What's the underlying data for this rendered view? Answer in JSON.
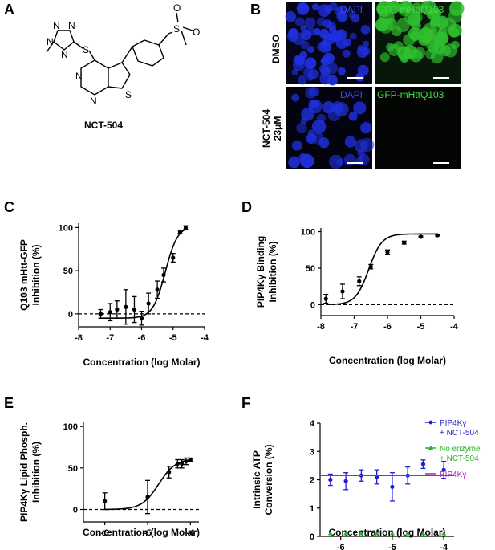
{
  "panel_a": {
    "letter": "A",
    "compound": "NCT-504",
    "atoms": {
      "n1": "N",
      "n2": "N",
      "n3": "N",
      "n4": "N",
      "s_link": "S",
      "n_pyr1": "N",
      "n_pyr2": "N",
      "s_thio": "S",
      "s_sulf": "S",
      "o1": "O",
      "o2": "O"
    }
  },
  "panel_b": {
    "letter": "B",
    "rows": [
      "DMSO",
      "NCT-504\n23μM"
    ],
    "row_line1": [
      "DMSO",
      "NCT-504"
    ],
    "row_line2": [
      "",
      "23μM"
    ],
    "channels": [
      "DAPI",
      "GFP-mHttQ103"
    ],
    "colors": {
      "dapi": "#2030e0",
      "gfp": "#30c030",
      "scale_bar": "#ffffff"
    }
  },
  "chart_data": [
    {
      "panel": "C",
      "type": "scatter",
      "xlabel": "Concentration (log Molar)",
      "ylabel": "Q103 mHtt-GFP Inhibition (%)",
      "ylabel_lines": [
        "Q103 mHtt-GFP",
        "Inhibition (%)"
      ],
      "xlim": [
        -8,
        -4
      ],
      "ylim": [
        -15,
        105
      ],
      "xticks": [
        -8,
        -7,
        -6,
        -5,
        -4
      ],
      "yticks": [
        0,
        50,
        100
      ],
      "zero_line": true,
      "series": [
        {
          "x": [
            -7.3,
            -7.0,
            -6.78,
            -6.5,
            -6.23,
            -6.0,
            -5.78,
            -5.5,
            -5.3,
            -5.0,
            -4.78,
            -4.6
          ],
          "y": [
            0,
            2,
            5,
            8,
            5,
            -5,
            12,
            28,
            45,
            65,
            95,
            100
          ],
          "err": [
            5,
            10,
            10,
            20,
            15,
            8,
            12,
            10,
            8,
            5,
            2,
            2
          ],
          "color": "#000000",
          "fit": true
        }
      ]
    },
    {
      "panel": "D",
      "type": "scatter",
      "xlabel": "Concentration (log Molar)",
      "ylabel": "PIP4Kγ Binding Inhibition (%)",
      "ylabel_lines": [
        "PIP4Kγ Binding",
        "Inhibition (%)"
      ],
      "xlim": [
        -8,
        -4
      ],
      "ylim": [
        -15,
        105
      ],
      "xticks": [
        -8,
        -7,
        -6,
        -5,
        -4
      ],
      "yticks": [
        0,
        50,
        100
      ],
      "zero_line": true,
      "series": [
        {
          "x": [
            -7.85,
            -7.35,
            -6.85,
            -6.5,
            -6.0,
            -5.5,
            -5.0,
            -4.5
          ],
          "y": [
            8,
            18,
            32,
            52,
            72,
            85,
            93,
            95
          ],
          "err": [
            6,
            10,
            6,
            3,
            3,
            2,
            1,
            1
          ],
          "color": "#000000",
          "fit": true
        }
      ]
    },
    {
      "panel": "E",
      "type": "scatter",
      "xlabel": "Concentration (log Molar)",
      "ylabel": "PIP4Kγ Lipid Phosph. Inhibition (%)",
      "ylabel_lines": [
        "PIP4Kγ Lipid Phosph.",
        "Inhibition (%)"
      ],
      "xlim": [
        -6.5,
        -3.8
      ],
      "ylim": [
        -15,
        105
      ],
      "xticks": [
        -6,
        -5,
        -4
      ],
      "yticks": [
        0,
        50,
        100
      ],
      "zero_line": true,
      "series": [
        {
          "x": [
            -6.0,
            -5.0,
            -4.5,
            -4.3,
            -4.2,
            -4.1,
            -4.0
          ],
          "y": [
            10,
            15,
            45,
            55,
            55,
            58,
            60
          ],
          "err": [
            10,
            20,
            7,
            5,
            5,
            4,
            2
          ],
          "color": "#000000",
          "fit": true
        }
      ]
    },
    {
      "panel": "F",
      "type": "line",
      "xlabel": "Concentration (log Molar)",
      "ylabel": "Intrinsic ATP Conversion (%)",
      "ylabel_lines": [
        "Intrinsic ATP",
        "Conversion (%)"
      ],
      "xlim": [
        -6.4,
        -3.8
      ],
      "ylim": [
        0,
        4
      ],
      "xticks": [
        -6,
        -5,
        -4
      ],
      "yticks": [
        0,
        1,
        2,
        3,
        4
      ],
      "zero_line": false,
      "series": [
        {
          "name": "PIP4Kγ + NCT-504",
          "legend_lines": [
            "PIP4Kγ",
            "+ NCT-504"
          ],
          "x": [
            -6.2,
            -5.9,
            -5.6,
            -5.3,
            -5.0,
            -4.7,
            -4.4,
            -4.0
          ],
          "y": [
            2.0,
            1.95,
            2.15,
            2.1,
            1.75,
            2.15,
            2.55,
            2.35
          ],
          "err": [
            0.2,
            0.3,
            0.2,
            0.25,
            0.5,
            0.3,
            0.15,
            0.3
          ],
          "color": "#1f1fcf",
          "marker": "circle"
        },
        {
          "name": "No enzyme + NCT-504",
          "legend_lines": [
            "No enzyme",
            "+ NCT-504"
          ],
          "x": [
            -6.2,
            -5.9,
            -5.6,
            -5.3,
            -5.0,
            -4.7,
            -4.4,
            -4.0
          ],
          "y": [
            0.1,
            0.1,
            0.1,
            0.1,
            0.1,
            0.1,
            0.1,
            0.1
          ],
          "color": "#22b822",
          "marker": "triangle"
        },
        {
          "name": "PIP4Kγ",
          "legend_lines": [
            "PIP4Kγ"
          ],
          "hline": 2.15,
          "color": "#b020b0",
          "marker": "line"
        }
      ]
    }
  ]
}
